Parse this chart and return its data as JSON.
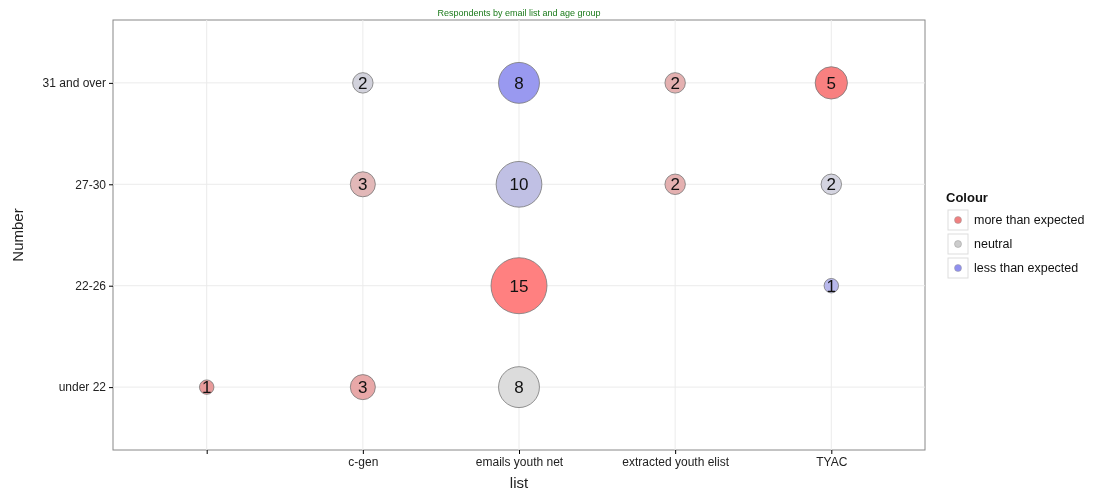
{
  "chart_data": {
    "type": "heatmap",
    "title": "Respondents by email list and age group",
    "xlabel": "list",
    "ylabel": "Number",
    "legend_title": "Colour",
    "categories": [
      null,
      "c-gen",
      "emails youth net",
      "extracted youth elist",
      "TYAC"
    ],
    "y_categories": [
      "31 and over",
      "27-30",
      "22-26",
      "under 22"
    ],
    "cells": [
      [
        null,
        2,
        8,
        2,
        5
      ],
      [
        null,
        3,
        10,
        2,
        2
      ],
      [
        null,
        null,
        15,
        null,
        1
      ],
      [
        1,
        3,
        8,
        null,
        null
      ]
    ],
    "colors": [
      [
        null,
        "#d2d2dc",
        "#9999f0",
        "#e4b0b0",
        "#f88080"
      ],
      [
        null,
        "#e2b8b8",
        "#c0c0e4",
        "#e4b0b0",
        "#d4d4e0"
      ],
      [
        null,
        null,
        "#ff8080",
        null,
        "#b8b8ec"
      ],
      [
        "#e89a9a",
        "#e8a8a8",
        "#dcdcdc",
        null,
        null
      ]
    ],
    "data_labels": true,
    "grid": true,
    "annotations": [
      "more than expected",
      "neutral",
      "less than expected"
    ]
  }
}
